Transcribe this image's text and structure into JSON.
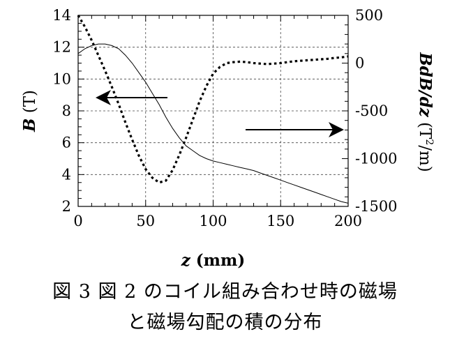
{
  "chart_data": {
    "type": "line",
    "x": [
      0,
      5,
      10,
      15,
      20,
      25,
      30,
      35,
      40,
      45,
      50,
      55,
      60,
      65,
      70,
      75,
      80,
      85,
      90,
      95,
      100,
      105,
      110,
      115,
      120,
      125,
      130,
      135,
      140,
      145,
      150,
      155,
      160,
      165,
      170,
      175,
      180,
      185,
      190,
      195,
      200
    ],
    "xlim": [
      0,
      200
    ],
    "xticks": [
      "0",
      "50",
      "100",
      "150",
      "200"
    ],
    "xlabel": {
      "var": "z",
      "unit": " (mm)"
    },
    "ylim_left": [
      2,
      14
    ],
    "yticks_left": [
      "2",
      "4",
      "6",
      "8",
      "10",
      "12",
      "14"
    ],
    "ylabel_left": {
      "var": "B",
      "unit": " (T)"
    },
    "ylim_right": [
      -1500,
      500
    ],
    "yticks_right": [
      "500",
      "0",
      "-500",
      "-1000",
      "-1500"
    ],
    "ylabel_right": {
      "var": "BdB/dz",
      "unit": " (T",
      "sup": "2",
      "tail": "/m)"
    },
    "grid": true,
    "series": [
      {
        "axis": "left",
        "style": "solid",
        "values": [
          11.6,
          11.9,
          12.1,
          12.2,
          12.2,
          12.1,
          11.9,
          11.5,
          11.0,
          10.4,
          9.8,
          9.1,
          8.4,
          7.6,
          6.9,
          6.3,
          5.8,
          5.5,
          5.2,
          5.0,
          4.85,
          4.75,
          4.65,
          4.55,
          4.45,
          4.35,
          4.25,
          4.1,
          3.95,
          3.8,
          3.65,
          3.5,
          3.35,
          3.2,
          3.05,
          2.9,
          2.75,
          2.6,
          2.45,
          2.3,
          2.2
        ]
      },
      {
        "axis": "right",
        "style": "dotted",
        "values": [
          500,
          380,
          240,
          80,
          -80,
          -250,
          -430,
          -620,
          -800,
          -970,
          -1110,
          -1200,
          -1250,
          -1230,
          -1120,
          -960,
          -780,
          -590,
          -400,
          -240,
          -110,
          -40,
          0,
          10,
          15,
          10,
          0,
          -5,
          -10,
          -5,
          0,
          10,
          20,
          25,
          30,
          35,
          40,
          45,
          55,
          60,
          70
        ]
      }
    ],
    "annotations": [
      {
        "type": "arrow",
        "direction": "left",
        "points_to": "left-axis"
      },
      {
        "type": "arrow",
        "direction": "right",
        "points_to": "right-axis"
      }
    ]
  },
  "caption": {
    "line1": "図 3  図 2 のコイル組み合わせ時の磁場",
    "line2": "と磁場勾配の積の分布"
  }
}
